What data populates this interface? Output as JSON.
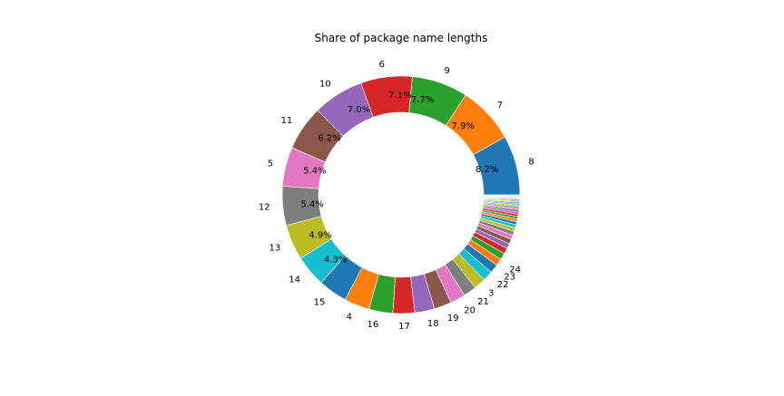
{
  "chart_data": {
    "type": "pie",
    "donut": true,
    "title": "Share of package name lengths",
    "start_angle_deg": 0,
    "direction": "counterclockwise",
    "slices": [
      {
        "label": "8",
        "value": 8.2,
        "pct_label": "8.2%",
        "color": "#1f77b4"
      },
      {
        "label": "7",
        "value": 7.9,
        "pct_label": "7.9%",
        "color": "#ff7f0e"
      },
      {
        "label": "9",
        "value": 7.7,
        "pct_label": "7.7%",
        "color": "#2ca02c"
      },
      {
        "label": "6",
        "value": 7.1,
        "pct_label": "7.1%",
        "color": "#d62728"
      },
      {
        "label": "10",
        "value": 7.0,
        "pct_label": "7.0%",
        "color": "#9467bd"
      },
      {
        "label": "11",
        "value": 6.2,
        "pct_label": "6.2%",
        "color": "#8c564b"
      },
      {
        "label": "5",
        "value": 5.4,
        "pct_label": "5.4%",
        "color": "#e377c2"
      },
      {
        "label": "12",
        "value": 5.4,
        "pct_label": "5.4%",
        "color": "#7f7f7f"
      },
      {
        "label": "13",
        "value": 4.9,
        "pct_label": "4.9%",
        "color": "#bcbd22"
      },
      {
        "label": "14",
        "value": 4.3,
        "pct_label": "4.3%",
        "color": "#17becf"
      },
      {
        "label": "15",
        "value": 4.0,
        "pct_label": "",
        "color": "#1f77b4"
      },
      {
        "label": "4",
        "value": 3.5,
        "pct_label": "",
        "color": "#ff7f0e"
      },
      {
        "label": "16",
        "value": 3.3,
        "pct_label": "",
        "color": "#2ca02c"
      },
      {
        "label": "17",
        "value": 3.0,
        "pct_label": "",
        "color": "#d62728"
      },
      {
        "label": "18",
        "value": 2.7,
        "pct_label": "",
        "color": "#9467bd"
      },
      {
        "label": "19",
        "value": 2.4,
        "pct_label": "",
        "color": "#8c564b"
      },
      {
        "label": "20",
        "value": 2.1,
        "pct_label": "",
        "color": "#e377c2"
      },
      {
        "label": "21",
        "value": 1.8,
        "pct_label": "",
        "color": "#7f7f7f"
      },
      {
        "label": "3",
        "value": 1.6,
        "pct_label": "",
        "color": "#bcbd22"
      },
      {
        "label": "22",
        "value": 1.4,
        "pct_label": "",
        "color": "#17becf"
      },
      {
        "label": "23",
        "value": 1.2,
        "pct_label": "",
        "color": "#1f77b4"
      },
      {
        "label": "24",
        "value": 1.0,
        "pct_label": "",
        "color": "#ff7f0e"
      },
      {
        "label": "",
        "value": 0.9,
        "pct_label": "",
        "color": "#2ca02c"
      },
      {
        "label": "",
        "value": 0.8,
        "pct_label": "",
        "color": "#d62728"
      },
      {
        "label": "",
        "value": 0.7,
        "pct_label": "",
        "color": "#9467bd"
      },
      {
        "label": "",
        "value": 0.65,
        "pct_label": "",
        "color": "#8c564b"
      },
      {
        "label": "",
        "value": 0.6,
        "pct_label": "",
        "color": "#e377c2"
      },
      {
        "label": "",
        "value": 0.55,
        "pct_label": "",
        "color": "#7f7f7f"
      },
      {
        "label": "",
        "value": 0.5,
        "pct_label": "",
        "color": "#bcbd22"
      },
      {
        "label": "",
        "value": 0.45,
        "pct_label": "",
        "color": "#17becf"
      },
      {
        "label": "",
        "value": 0.4,
        "pct_label": "",
        "color": "#1f77b4"
      },
      {
        "label": "",
        "value": 0.38,
        "pct_label": "",
        "color": "#ff7f0e"
      },
      {
        "label": "",
        "value": 0.35,
        "pct_label": "",
        "color": "#2ca02c"
      },
      {
        "label": "",
        "value": 0.32,
        "pct_label": "",
        "color": "#d62728"
      },
      {
        "label": "",
        "value": 0.3,
        "pct_label": "",
        "color": "#9467bd"
      },
      {
        "label": "",
        "value": 0.27,
        "pct_label": "",
        "color": "#8c564b"
      },
      {
        "label": "",
        "value": 0.25,
        "pct_label": "",
        "color": "#e377c2"
      },
      {
        "label": "",
        "value": 0.23,
        "pct_label": "",
        "color": "#7f7f7f"
      },
      {
        "label": "",
        "value": 0.21,
        "pct_label": "",
        "color": "#bcbd22"
      },
      {
        "label": "",
        "value": 0.19,
        "pct_label": "",
        "color": "#17becf"
      },
      {
        "label": "",
        "value": 0.17,
        "pct_label": "",
        "color": "#1f77b4"
      },
      {
        "label": "",
        "value": 0.15,
        "pct_label": "",
        "color": "#ff7f0e"
      },
      {
        "label": "",
        "value": 0.14,
        "pct_label": "",
        "color": "#2ca02c"
      },
      {
        "label": "",
        "value": 0.13,
        "pct_label": "",
        "color": "#d62728"
      },
      {
        "label": "",
        "value": 0.12,
        "pct_label": "",
        "color": "#9467bd"
      },
      {
        "label": "",
        "value": 0.11,
        "pct_label": "",
        "color": "#8c564b"
      },
      {
        "label": "",
        "value": 0.1,
        "pct_label": "",
        "color": "#e377c2"
      },
      {
        "label": "",
        "value": 0.1,
        "pct_label": "",
        "color": "#7f7f7f"
      },
      {
        "label": "",
        "value": 0.09,
        "pct_label": "",
        "color": "#bcbd22"
      },
      {
        "label": "",
        "value": 0.09,
        "pct_label": "",
        "color": "#17becf"
      }
    ]
  }
}
